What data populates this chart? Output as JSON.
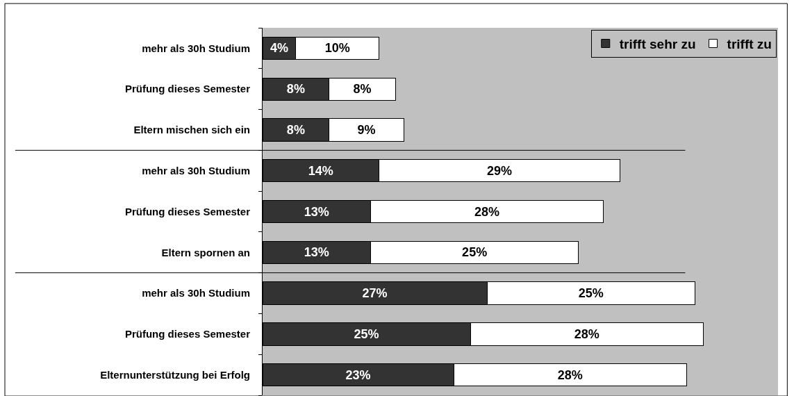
{
  "chart_data": {
    "type": "bar",
    "orientation": "horizontal",
    "stacked": true,
    "legend": "top right",
    "grid": false,
    "categories": [
      "mehr als 30h Studium",
      "Prüfung dieses Semester",
      "Eltern mischen sich ein",
      "mehr als 30h Studium",
      "Prüfung dieses Semester",
      "Eltern spornen an",
      "mehr als 30h Studium",
      "Prüfung dieses Semester",
      "Elternunterstützung bei Erfolg"
    ],
    "series": [
      {
        "name": "trifft sehr zu",
        "color": "#333333",
        "values": [
          4,
          8,
          8,
          14,
          13,
          13,
          27,
          25,
          23
        ],
        "value_labels": [
          "4%",
          "8%",
          "8%",
          "14%",
          "13%",
          "13%",
          "27%",
          "25%",
          "23%"
        ]
      },
      {
        "name": "trifft zu",
        "color": "#ffffff",
        "values": [
          10,
          8,
          9,
          29,
          28,
          25,
          25,
          28,
          28
        ],
        "value_labels": [
          "10%",
          "8%",
          "9%",
          "29%",
          "28%",
          "25%",
          "25%",
          "28%",
          "28%"
        ]
      }
    ]
  }
}
